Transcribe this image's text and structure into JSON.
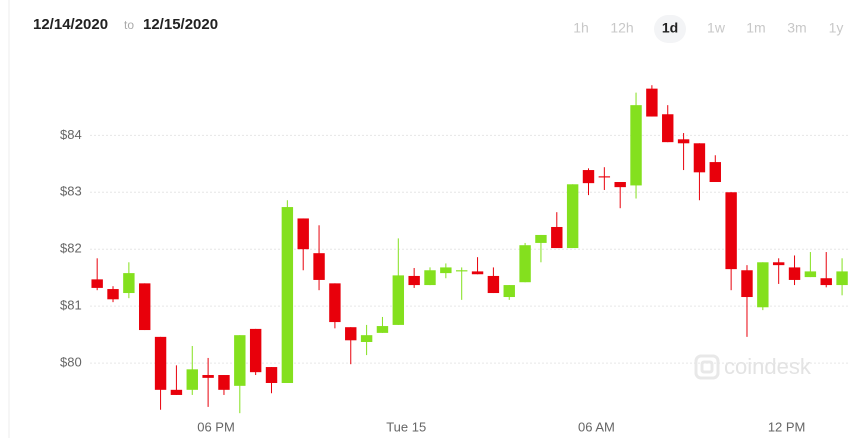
{
  "header": {
    "from": "12/14/2020",
    "separator": "to",
    "to": "12/15/2020",
    "ranges": [
      "1h",
      "12h",
      "1d",
      "1w",
      "1m",
      "3m",
      "1y"
    ],
    "selected_index": 2
  },
  "watermark": "coindesk",
  "chart_data": {
    "type": "candlestick",
    "x": [
      14.25,
      14.75,
      15.25,
      15.75,
      16.25,
      16.75,
      17.25,
      17.75,
      18.25,
      18.75,
      19.25,
      19.75,
      20.25,
      20.75,
      21.25,
      21.75,
      22.25,
      22.75,
      23.25,
      23.75,
      24.25,
      24.75,
      25.25,
      25.75,
      26.25,
      26.75,
      27.25,
      27.75,
      28.25,
      28.75,
      29.25,
      29.75,
      30.25,
      30.75,
      31.25,
      31.75,
      32.25,
      32.75,
      33.25,
      33.75,
      34.25,
      34.75,
      35.25,
      35.75,
      36.25,
      36.75,
      37.25,
      37.75
    ],
    "open": [
      81.47,
      81.3,
      81.23,
      81.4,
      80.46,
      79.53,
      79.53,
      79.79,
      79.79,
      79.6,
      80.6,
      79.93,
      79.65,
      82.54,
      81.93,
      81.4,
      80.63,
      80.37,
      80.53,
      80.67,
      81.53,
      81.37,
      81.58,
      81.61,
      81.61,
      81.53,
      81.16,
      81.42,
      82.11,
      82.39,
      82.02,
      83.39,
      83.28,
      83.18,
      83.12,
      84.82,
      84.37,
      83.93,
      83.86,
      83.53,
      83.0,
      81.63,
      80.98,
      81.77,
      81.68,
      81.51,
      81.49,
      81.37
    ],
    "high": [
      81.84,
      81.35,
      81.77,
      81.4,
      80.46,
      79.96,
      80.3,
      80.09,
      79.79,
      80.49,
      80.6,
      79.93,
      82.86,
      82.54,
      82.42,
      81.4,
      80.63,
      80.67,
      80.81,
      82.19,
      81.67,
      81.68,
      81.75,
      81.68,
      81.86,
      81.68,
      81.37,
      82.11,
      82.25,
      82.65,
      83.14,
      83.42,
      83.44,
      83.18,
      84.75,
      84.88,
      84.53,
      84.04,
      83.86,
      83.65,
      83.0,
      81.72,
      81.77,
      81.84,
      81.89,
      81.95,
      81.95,
      81.84
    ],
    "low": [
      81.28,
      81.07,
      81.14,
      80.58,
      79.18,
      79.44,
      79.44,
      79.23,
      79.44,
      79.12,
      79.79,
      79.47,
      79.65,
      81.63,
      81.28,
      80.61,
      79.98,
      80.14,
      80.53,
      80.67,
      81.32,
      81.37,
      81.49,
      81.11,
      81.56,
      81.23,
      81.11,
      81.42,
      81.77,
      82.02,
      82.02,
      82.95,
      83.04,
      82.72,
      82.89,
      84.33,
      83.88,
      83.39,
      82.86,
      83.18,
      81.28,
      80.46,
      80.93,
      81.39,
      81.37,
      81.51,
      81.33,
      81.19
    ],
    "close": [
      81.32,
      81.12,
      81.58,
      80.58,
      79.53,
      79.44,
      79.89,
      79.74,
      79.53,
      80.49,
      79.84,
      79.65,
      82.74,
      82.0,
      81.46,
      80.72,
      80.4,
      80.49,
      80.65,
      81.54,
      81.37,
      81.63,
      81.68,
      81.63,
      81.56,
      81.23,
      81.37,
      82.07,
      82.25,
      82.02,
      83.14,
      83.16,
      83.26,
      83.09,
      84.53,
      84.33,
      83.88,
      83.86,
      83.35,
      83.18,
      81.65,
      81.16,
      81.77,
      81.72,
      81.46,
      81.61,
      81.37,
      81.61
    ],
    "up_color": "#84e01e",
    "down_color": "#e8000b",
    "xlim": [
      11.5,
      38
    ],
    "xticks": [
      {
        "value": 18,
        "label": "06 PM"
      },
      {
        "value": 24,
        "label": "Tue 15"
      },
      {
        "value": 30,
        "label": "06 AM"
      },
      {
        "value": 36,
        "label": "12 PM"
      }
    ],
    "ylim": [
      79.0,
      85.2
    ],
    "yticks": [
      {
        "value": 80,
        "label": "$80"
      },
      {
        "value": 81,
        "label": "$81"
      },
      {
        "value": 82,
        "label": "$82"
      },
      {
        "value": 83,
        "label": "$83"
      },
      {
        "value": 84,
        "label": "$84"
      }
    ],
    "grid": true
  }
}
